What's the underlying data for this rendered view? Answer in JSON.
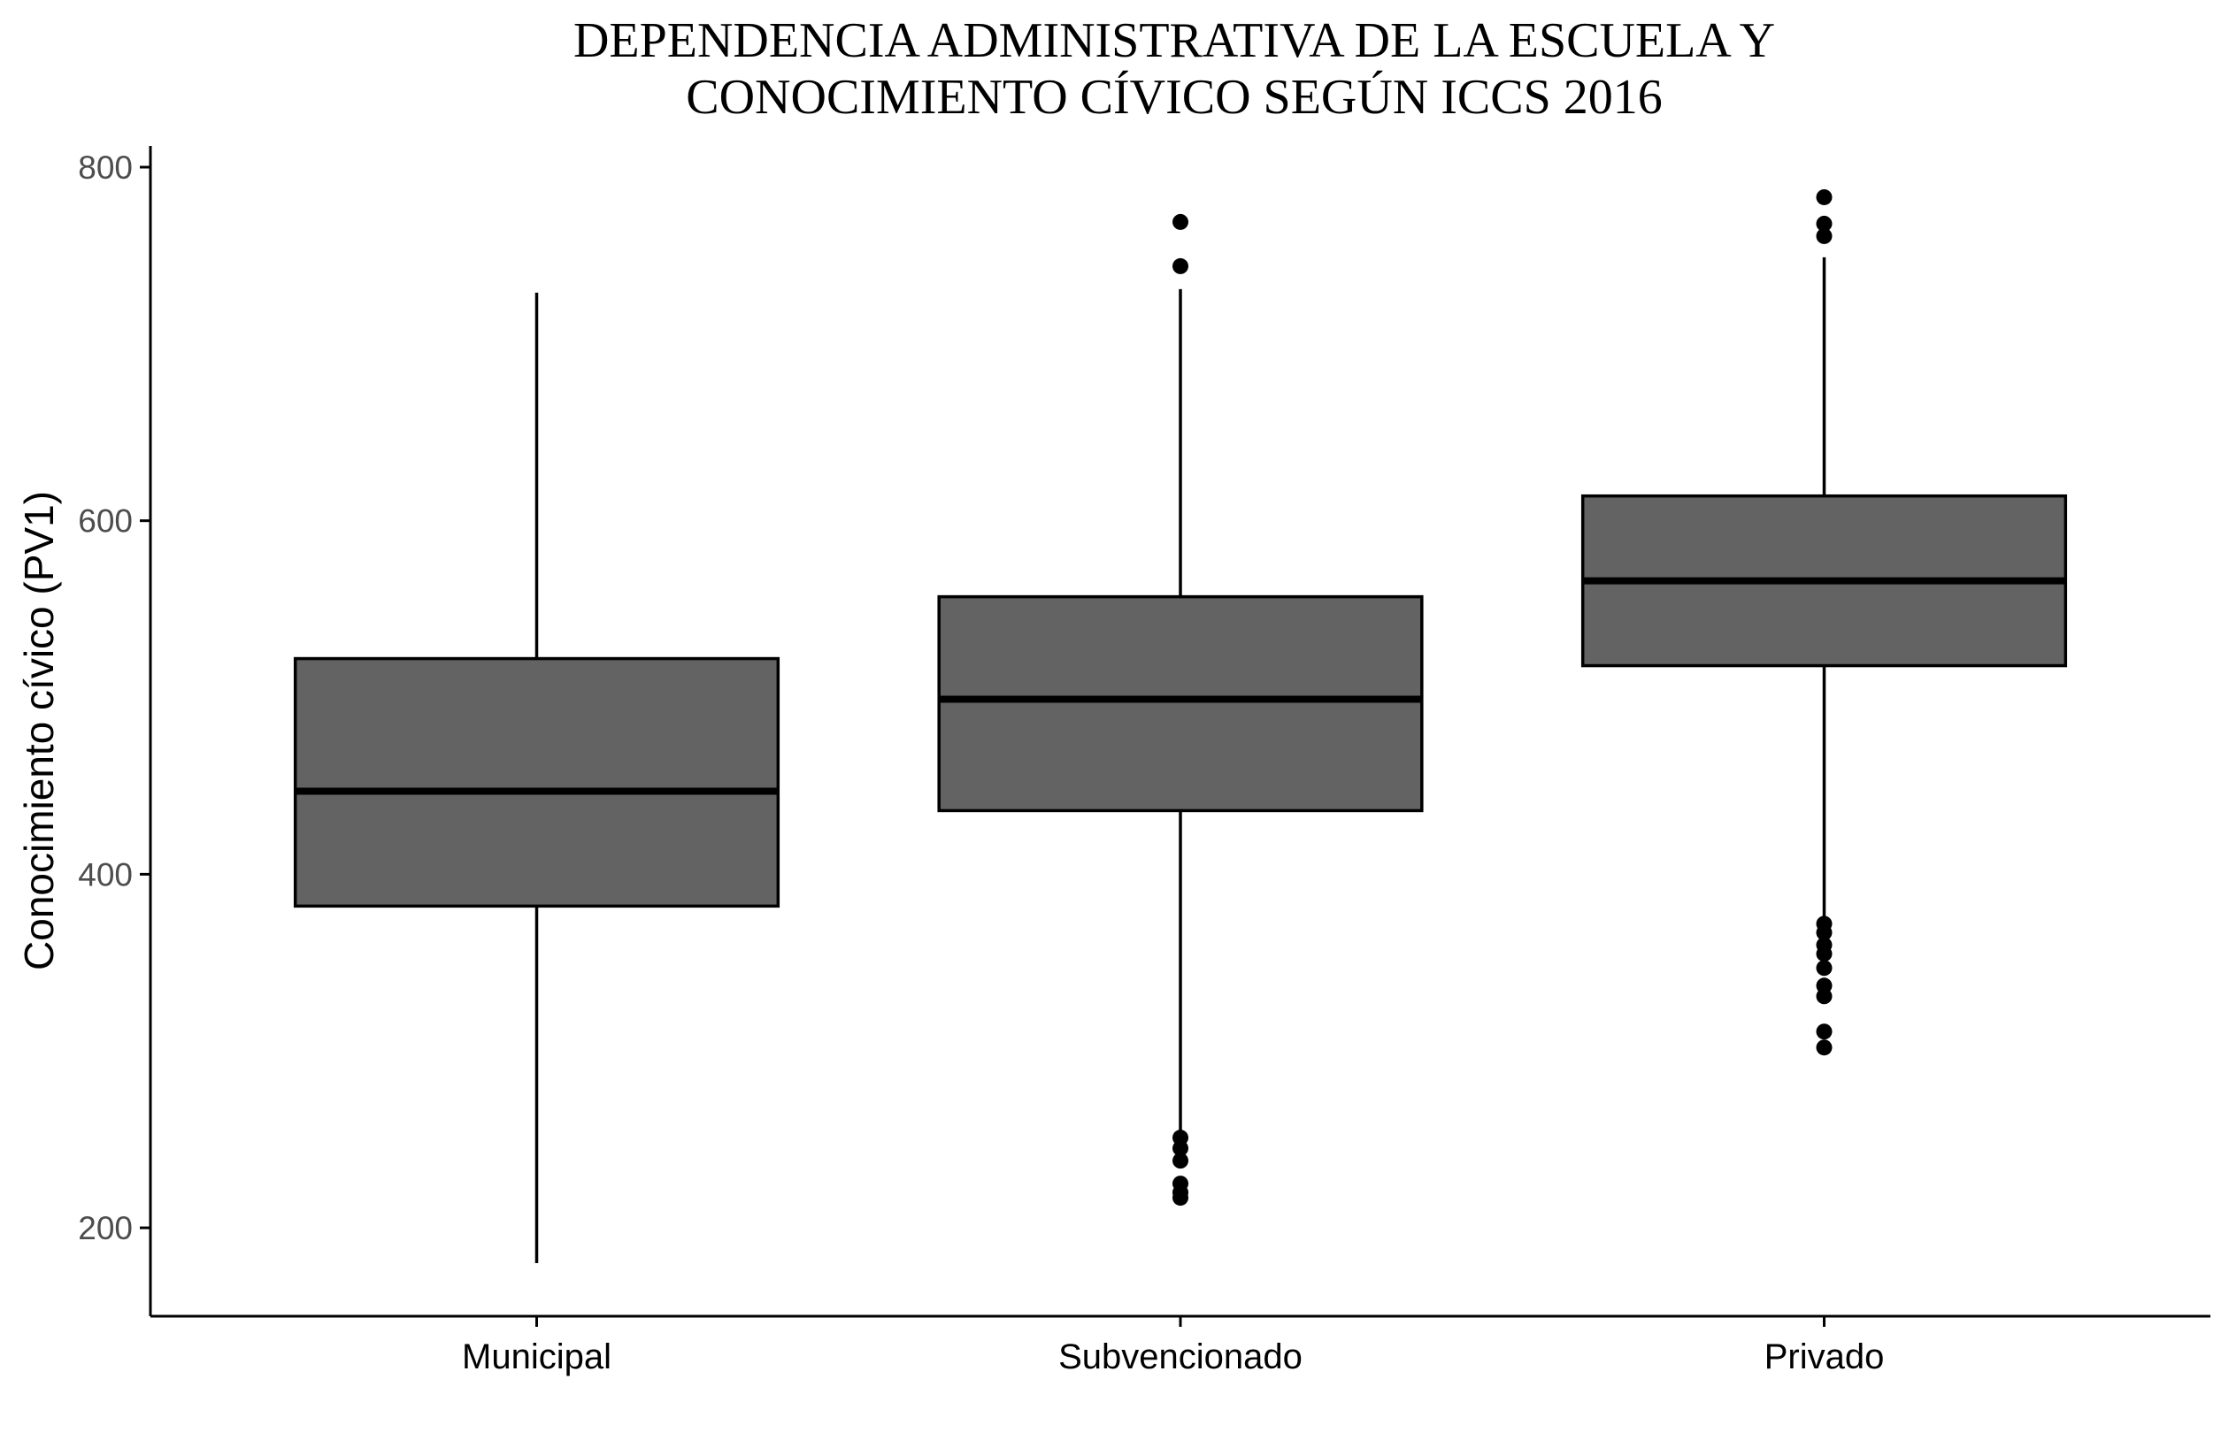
{
  "chart_data": {
    "type": "boxplot",
    "title_lines": [
      "DEPENDENCIA ADMINISTRATIVA DE LA ESCUELA Y",
      "CONOCIMIENTO CÍVICO SEGÚN ICCS 2016"
    ],
    "xlabel": "",
    "ylabel": "Conocimiento cívico (PV1)",
    "ylim": [
      150,
      812
    ],
    "yticks": [
      200,
      400,
      600,
      800
    ],
    "grid": false,
    "box_fill": "#636363",
    "line_color": "#000000",
    "categories": [
      "Municipal",
      "Subvencionado",
      "Privado"
    ],
    "boxes": [
      {
        "name": "Municipal",
        "whisker_low": 180,
        "q1": 382,
        "median": 447,
        "q3": 522,
        "whisker_high": 729,
        "outliers": []
      },
      {
        "name": "Subvencionado",
        "whisker_low": 250,
        "q1": 436,
        "median": 499,
        "q3": 557,
        "whisker_high": 731,
        "outliers": [
          769,
          744,
          251,
          245,
          238,
          225,
          220,
          217
        ]
      },
      {
        "name": "Privado",
        "whisker_low": 373,
        "q1": 518,
        "median": 566,
        "q3": 614,
        "whisker_high": 749,
        "outliers": [
          783,
          768,
          761,
          372,
          367,
          360,
          355,
          347,
          337,
          331,
          311,
          302
        ]
      }
    ]
  }
}
